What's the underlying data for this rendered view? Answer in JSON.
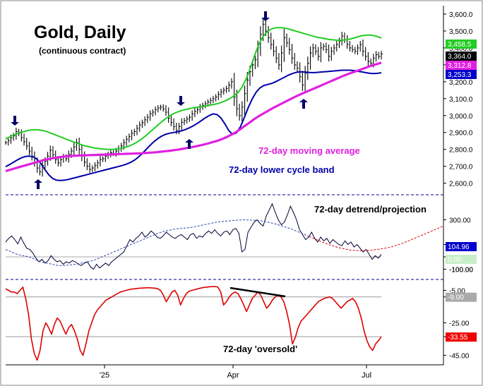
{
  "header": {
    "title": "Gold, Daily",
    "subtitle": "(continuous contract)"
  },
  "colors": {
    "price_bars": "#000000",
    "upper_band": "#22cc22",
    "lower_band": "#0000aa",
    "moving_average": "#e020e0",
    "detrend_line": "#000033",
    "projection": "#dd0000",
    "oversold_line": "#dd0000",
    "divergence_line": "#000000",
    "arrow": "#000066",
    "separator": "#000099",
    "gridline": "#999999"
  },
  "chart_data": [
    {
      "type": "ohlc",
      "panel": "price",
      "title": "Gold, Daily",
      "subtitle": "(continuous contract)",
      "x_ticks": [
        "'25",
        "Apr",
        "Jul"
      ],
      "y_ticks": [
        2600,
        2700,
        2800,
        2900,
        3000,
        3100,
        3200,
        3300,
        3400,
        3500,
        3600
      ],
      "y_tick_labels": [
        "2,600.0",
        "2,700.0",
        "2,800.0",
        "2,900.0",
        "3,000.0",
        "3,100.0",
        "3,200.0",
        "3,300.0",
        "3,400.0",
        "3,500.0",
        "3,600.0"
      ],
      "ylim": [
        2540,
        3650
      ],
      "grid": false,
      "close_series": [
        2840,
        2852,
        2868,
        2880,
        2905,
        2895,
        2870,
        2845,
        2820,
        2790,
        2760,
        2725,
        2690,
        2668,
        2705,
        2730,
        2760,
        2795,
        2768,
        2740,
        2720,
        2740,
        2755,
        2745,
        2770,
        2790,
        2815,
        2840,
        2800,
        2760,
        2725,
        2700,
        2682,
        2690,
        2705,
        2720,
        2740,
        2745,
        2760,
        2770,
        2780,
        2775,
        2790,
        2805,
        2820,
        2840,
        2860,
        2875,
        2895,
        2905,
        2925,
        2945,
        2958,
        2975,
        2990,
        3010,
        3020,
        3035,
        3045,
        3050,
        3040,
        3020,
        2985,
        2960,
        2935,
        2912,
        2935,
        2960,
        2970,
        2980,
        2990,
        3010,
        3025,
        3035,
        3050,
        3060,
        3070,
        3080,
        3090,
        3100,
        3110,
        3125,
        3140,
        3150,
        3160,
        3180,
        3200,
        3110,
        3040,
        3000,
        3050,
        3130,
        3210,
        3260,
        3300,
        3330,
        3400,
        3480,
        3540,
        3500,
        3460,
        3420,
        3380,
        3340,
        3300,
        3370,
        3460,
        3430,
        3390,
        3340,
        3300,
        3280,
        3230,
        3180,
        3250,
        3310,
        3370,
        3400,
        3380,
        3350,
        3400,
        3410,
        3390,
        3350,
        3380,
        3400,
        3420,
        3440,
        3470,
        3450,
        3420,
        3400,
        3390,
        3380,
        3400,
        3420,
        3380,
        3350,
        3320,
        3310,
        3340,
        3360,
        3350,
        3364
      ],
      "last_price": 3364.0,
      "down_arrows": [
        "early Dec peak",
        "late Feb peak",
        "mid Apr peak"
      ],
      "up_arrows": [
        "mid Dec trough",
        "early Mar trough",
        "mid May trough"
      ],
      "series": [
        {
          "name": "upper cycle band",
          "label": "",
          "last_value": 3458.5,
          "values": [
            2862,
            2872,
            2882,
            2890,
            2898,
            2904,
            2910,
            2914,
            2916,
            2916,
            2914,
            2910,
            2904,
            2896,
            2888,
            2880,
            2872,
            2864,
            2856,
            2848,
            2840,
            2833,
            2826,
            2820,
            2815,
            2811,
            2807,
            2804,
            2802,
            2801,
            2800,
            2800,
            2802,
            2805,
            2810,
            2816,
            2824,
            2834,
            2846,
            2860,
            2876,
            2894,
            2912,
            2930,
            2948,
            2966,
            2982,
            2996,
            3008,
            3018,
            3026,
            3032,
            3037,
            3042,
            3046,
            3049,
            3052,
            3055,
            3058,
            3062,
            3066,
            3071,
            3078,
            3086,
            3096,
            3108,
            3122,
            3140,
            3170,
            3210,
            3260,
            3320,
            3380,
            3430,
            3468,
            3492,
            3508,
            3516,
            3520,
            3520,
            3518,
            3514,
            3508,
            3502,
            3496,
            3490,
            3484,
            3478,
            3472,
            3466,
            3462,
            3458,
            3454,
            3450,
            3448,
            3446,
            3445,
            3446,
            3448,
            3452,
            3458,
            3464,
            3470,
            3474,
            3476,
            3476,
            3472,
            3466,
            3458.5
          ]
        },
        {
          "name": "lower cycle band",
          "label": "72-day lower cycle band",
          "last_value": 3253.3,
          "values": [
            2698,
            2710,
            2724,
            2738,
            2750,
            2758,
            2760,
            2756,
            2742,
            2716,
            2682,
            2650,
            2628,
            2618,
            2616,
            2618,
            2622,
            2628,
            2634,
            2640,
            2646,
            2652,
            2658,
            2664,
            2670,
            2676,
            2682,
            2688,
            2694,
            2700,
            2706,
            2714,
            2724,
            2738,
            2756,
            2778,
            2802,
            2826,
            2848,
            2866,
            2880,
            2890,
            2896,
            2900,
            2904,
            2910,
            2918,
            2928,
            2940,
            2954,
            2970,
            2986,
            3000,
            3010,
            3006,
            2986,
            2952,
            2912,
            2888,
            2898,
            2934,
            2988,
            3048,
            3098,
            3138,
            3164,
            3178,
            3184,
            3190,
            3200,
            3212,
            3224,
            3236,
            3246,
            3254,
            3258,
            3258,
            3256,
            3254,
            3254,
            3256,
            3258,
            3260,
            3262,
            3264,
            3266,
            3268,
            3268,
            3268,
            3266,
            3262,
            3258,
            3254,
            3250,
            3248,
            3250,
            3253.3
          ]
        },
        {
          "name": "72-day moving average",
          "label": "72-day moving average",
          "last_value": 3312.8,
          "values": [
            2672,
            2680,
            2688,
            2696,
            2704,
            2712,
            2720,
            2728,
            2736,
            2742,
            2748,
            2752,
            2756,
            2759,
            2761,
            2763,
            2764,
            2765,
            2766,
            2767,
            2768,
            2769,
            2770,
            2771,
            2772,
            2773,
            2774,
            2775,
            2776,
            2777,
            2779,
            2781,
            2783,
            2786,
            2789,
            2792,
            2796,
            2800,
            2805,
            2810,
            2815,
            2821,
            2827,
            2834,
            2842,
            2850,
            2860,
            2872,
            2886,
            2902,
            2920,
            2940,
            2960,
            2980,
            2998,
            3014,
            3030,
            3046,
            3060,
            3074,
            3088,
            3102,
            3116,
            3128,
            3140,
            3152,
            3164,
            3176,
            3188,
            3200,
            3212,
            3224,
            3236,
            3246,
            3256,
            3266,
            3276,
            3286,
            3296,
            3304,
            3312.8
          ]
        }
      ],
      "label_values": [
        "3,458.5",
        "3,364.0",
        "3,312.8",
        "3,253.3"
      ]
    },
    {
      "type": "line",
      "panel": "detrend",
      "title": "72-day detrend/projection",
      "y_ticks": [
        300,
        100,
        0,
        -100
      ],
      "y_tick_labels": [
        "300.00",
        "100.00",
        "0.00",
        "-100.00"
      ],
      "ylim": [
        -160,
        480
      ],
      "last_value": 104.96,
      "zero_label": "0.00",
      "series": [
        {
          "name": "detrend",
          "values": [
            120,
            150,
            170,
            140,
            105,
            160,
            110,
            70,
            60,
            30,
            -10,
            -40,
            -20,
            -50,
            -30,
            10,
            -20,
            -40,
            -30,
            -60,
            -40,
            -50,
            -30,
            -40,
            -60,
            -70,
            -50,
            -40,
            -80,
            -100,
            -60,
            -90,
            -70,
            -50,
            -70,
            -40,
            -20,
            0,
            20,
            40,
            90,
            140,
            120,
            150,
            170,
            200,
            160,
            180,
            210,
            190,
            160,
            150,
            170,
            200,
            180,
            160,
            150,
            170,
            180,
            160,
            140,
            180,
            190,
            150,
            170,
            160,
            190,
            210,
            190,
            220,
            190,
            170,
            200,
            210,
            180,
            220,
            230,
            190,
            40,
            60,
            200,
            240,
            280,
            300,
            270,
            250,
            330,
            380,
            430,
            360,
            300,
            260,
            280,
            340,
            410,
            360,
            300,
            220,
            180,
            140,
            160,
            200,
            150,
            120,
            160,
            130,
            150,
            110,
            140,
            120,
            100,
            90,
            130,
            100,
            120,
            80,
            100,
            70,
            40,
            60,
            20,
            -20,
            10,
            -10,
            20
          ]
        },
        {
          "name": "projection",
          "values": [
            60,
            40,
            20,
            10,
            0,
            -20,
            -40,
            -50,
            -60,
            -70,
            -70,
            -65,
            -60,
            -50,
            -40,
            -30,
            -10,
            10,
            30,
            50,
            70,
            90,
            110,
            130,
            150,
            170,
            190,
            205,
            215,
            225,
            230,
            235,
            240,
            250,
            260,
            270,
            280,
            285,
            290,
            295,
            298,
            300,
            298,
            295,
            290,
            280,
            270,
            255,
            240,
            225,
            205,
            185,
            165,
            145,
            125,
            105,
            90,
            75,
            65,
            55,
            52,
            50,
            52,
            56,
            62,
            70,
            80,
            95,
            110,
            130,
            150,
            170,
            190,
            210,
            230,
            250
          ]
        }
      ]
    },
    {
      "type": "line",
      "panel": "oversold",
      "title": "72-day 'oversold'",
      "y_ticks": [
        -5,
        -9,
        -25,
        -33.55,
        -45
      ],
      "y_tick_labels": [
        "-5.00",
        "-9.00",
        "-25.00",
        "-33.55",
        "-45.00"
      ],
      "ylim": [
        -50,
        0
      ],
      "reference_lines": [
        -9.0,
        -33.55
      ],
      "last_value": -33.55,
      "series": [
        {
          "name": "oversold",
          "values": [
            -4,
            -5,
            -6,
            -6,
            -7,
            -5,
            -3,
            -10,
            -20,
            -35,
            -44,
            -48,
            -42,
            -30,
            -25,
            -28,
            -32,
            -26,
            -22,
            -24,
            -28,
            -32,
            -28,
            -26,
            -30,
            -35,
            -42,
            -45,
            -38,
            -30,
            -25,
            -20,
            -17,
            -15,
            -13,
            -11,
            -10,
            -9,
            -8,
            -7,
            -6,
            -5.5,
            -5,
            -4.5,
            -4.2,
            -4,
            -3.8,
            -3.6,
            -3.5,
            -3.4,
            -3.4,
            -3.5,
            -3.6,
            -4,
            -5,
            -8,
            -12,
            -9,
            -6,
            -5,
            -8,
            -14,
            -10,
            -7,
            -5.5,
            -5,
            -4.5,
            -4,
            -3.6,
            -3.2,
            -3,
            -2.8,
            -2.7,
            -2.6,
            -3,
            -6,
            -14,
            -12,
            -9,
            -7,
            -6,
            -7,
            -10,
            -14,
            -18,
            -14,
            -10,
            -8,
            -6,
            -8,
            -12,
            -16,
            -14,
            -11,
            -9,
            -8,
            -9,
            -12,
            -18,
            -26,
            -38,
            -34,
            -28,
            -24,
            -22,
            -20,
            -18,
            -16,
            -14,
            -12,
            -11,
            -10,
            -9.5,
            -9,
            -10,
            -12,
            -14,
            -16,
            -14,
            -12,
            -11,
            -10,
            -12,
            -16,
            -22,
            -30,
            -36,
            -40,
            -42,
            -38,
            -36,
            -33.55
          ]
        }
      ]
    }
  ]
}
